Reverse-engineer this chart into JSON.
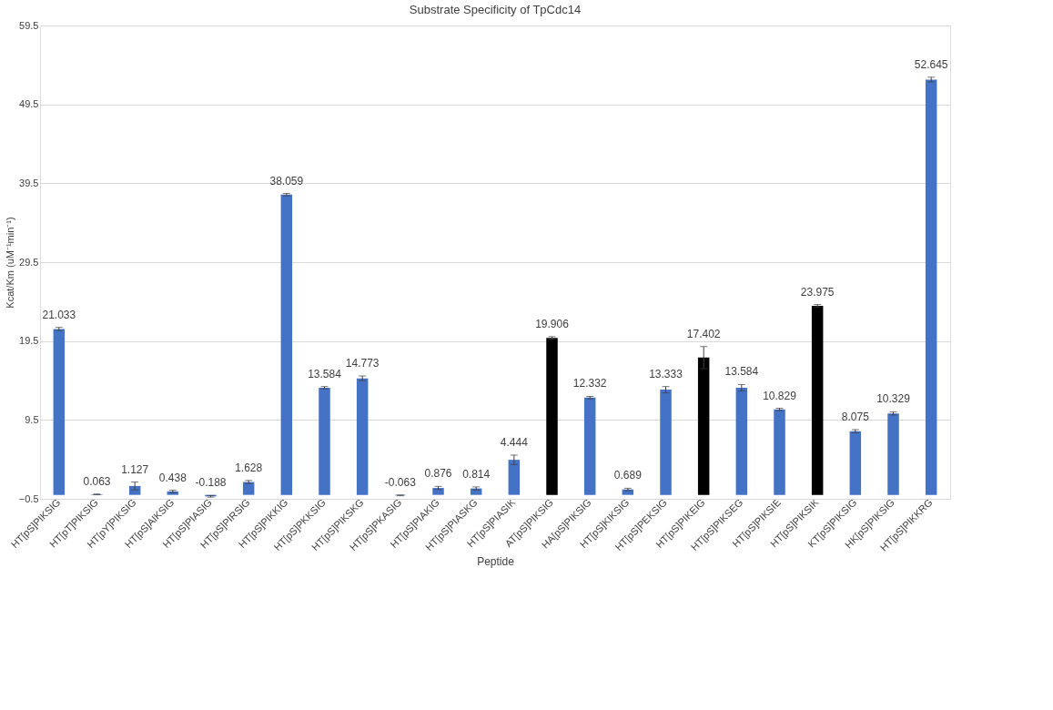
{
  "chart_data": {
    "type": "bar",
    "title": "Substrate Specificity of TpCdc14",
    "xlabel": "Peptide",
    "ylabel": "Kcat/Km (uM⁻¹min⁻¹)",
    "categories": [
      "HT[pS]PIKSIG",
      "HT[pT]PIKSIG",
      "HT[pY]PIKSIG",
      "HT[pS]AIKSIG",
      "HT[pS]PIASIG",
      "HT[pS]PIRSIG",
      "HT[pS]PIKKIG",
      "HT[pS]PKKSIG",
      "HT[pS]PIKSKG",
      "HT[pS]PKASIG",
      "HT[pS]PIAKIG",
      "HT[pS]PIASKG",
      "HT[pS]PIASIK",
      "AT[pS]PIKSIG",
      "HA[pS]PIKSIG",
      "HT[pS]KIKSIG",
      "HT[pS]PEKSIG",
      "HT[pS]PIKEIG",
      "HT[pS]PIKSEG",
      "HT[pS]PIKSIE",
      "HT[pS]PIKSIK",
      "KT[pS]PIKSIG",
      "HK[pS]PIKSIG",
      "HT[pS]PIKKRG"
    ],
    "values": [
      21.033,
      0.063,
      1.127,
      0.438,
      -0.188,
      1.628,
      38.059,
      13.584,
      14.773,
      -0.063,
      0.876,
      0.814,
      4.444,
      19.906,
      12.332,
      0.689,
      13.333,
      17.402,
      13.584,
      10.829,
      23.975,
      8.075,
      10.329,
      52.645
    ],
    "errors": [
      0.2,
      0.05,
      0.5,
      0.15,
      0.1,
      0.2,
      0.15,
      0.15,
      0.3,
      0.05,
      0.2,
      0.2,
      0.6,
      0.15,
      0.15,
      0.15,
      0.4,
      1.4,
      0.4,
      0.15,
      0.15,
      0.2,
      0.2,
      0.3
    ],
    "colors": [
      "#4472c4",
      "#4472c4",
      "#4472c4",
      "#4472c4",
      "#4472c4",
      "#4472c4",
      "#4472c4",
      "#4472c4",
      "#4472c4",
      "#4472c4",
      "#4472c4",
      "#4472c4",
      "#4472c4",
      "#000000",
      "#4472c4",
      "#4472c4",
      "#4472c4",
      "#000000",
      "#4472c4",
      "#4472c4",
      "#000000",
      "#4472c4",
      "#4472c4",
      "#4472c4"
    ],
    "ylim": [
      -0.5,
      59.5
    ],
    "yticks": [
      -0.5,
      9.5,
      19.5,
      29.5,
      39.5,
      49.5,
      59.5
    ],
    "grid": "y",
    "data_labels": true
  }
}
